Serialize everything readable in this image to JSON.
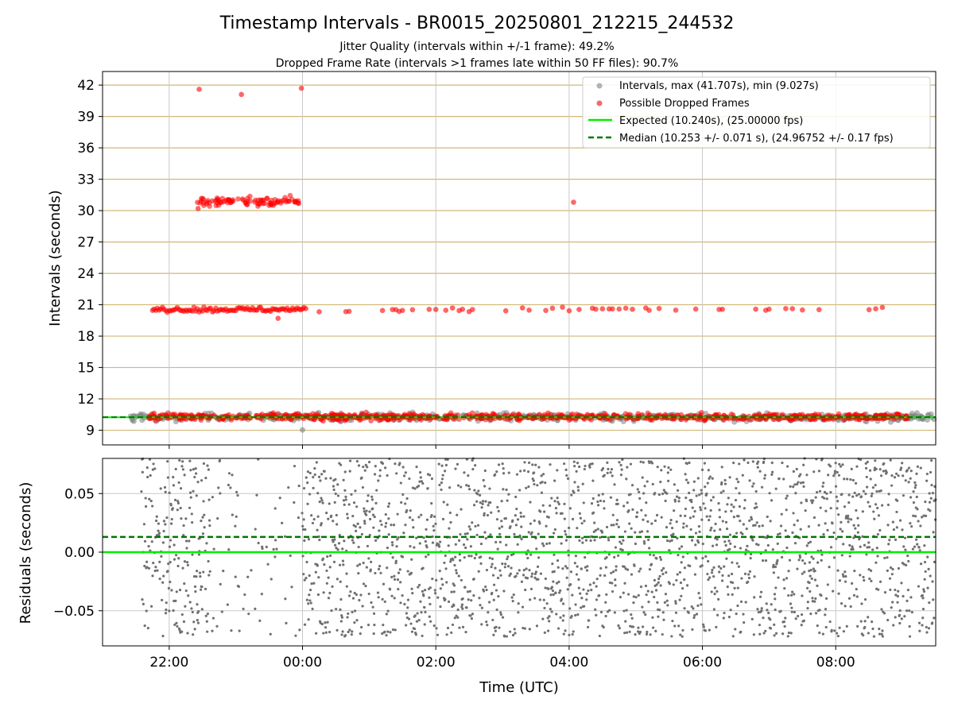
{
  "title": "Timestamp Intervals - BR0015_20250801_212215_244532",
  "subtitle_1": "Jitter Quality (intervals within +/-1 frame): 49.2%",
  "subtitle_2": "Dropped Frame Rate (intervals >1 frames late within 50 FF files): 90.7%",
  "colors": {
    "intervals": "#808080",
    "dropped": "#ff0000",
    "expected": "#00ee00",
    "median": "#007700",
    "hgrid": "#d2b877",
    "grid": "#c8c8c8"
  },
  "chart_data": [
    {
      "type": "scatter",
      "panel": "top",
      "ylabel": "Intervals (seconds)",
      "xlabel": "",
      "xlim": [
        "21:00",
        "09:30"
      ],
      "ylim": [
        7.6,
        43.3
      ],
      "y_ticks": [
        "9",
        "12",
        "15",
        "18",
        "21",
        "24",
        "27",
        "30",
        "33",
        "36",
        "39",
        "42"
      ],
      "x_ticks": [
        "22:00",
        "00:00",
        "02:00",
        "04:00",
        "06:00",
        "08:00"
      ],
      "legend_position": "upper-right",
      "legend": [
        {
          "label": "Intervals, max (41.707s), min (9.027s)",
          "kind": "marker",
          "color": "#808080"
        },
        {
          "label": "Possible Dropped Frames",
          "kind": "marker",
          "color": "#ff0000"
        },
        {
          "label": "Expected (10.240s), (25.00000 fps)",
          "kind": "line",
          "color": "#00ee00"
        },
        {
          "label": "Median (10.253 +/- 0.071 s), (24.96752 +/- 0.17 fps)",
          "kind": "dashed",
          "color": "#007700"
        }
      ],
      "expected_line": 10.24,
      "median_line": 10.253,
      "series": [
        {
          "name": "Intervals, max (41.707s), min (9.027s)",
          "color": "#808080",
          "clusters": [
            {
              "x_start": "21:25",
              "x_end": "09:30",
              "y": 10.24,
              "spread": 0.18
            },
            {
              "x_start": "00:00",
              "x_end": "00:00",
              "y": 9.03,
              "spread": 0
            }
          ]
        },
        {
          "name": "Possible Dropped Frames",
          "color": "#ff0000",
          "clusters": [
            {
              "x_start": "21:40",
              "x_end": "09:05",
              "y": 10.28,
              "spread": 0.15
            },
            {
              "x_start": "21:45",
              "x_end": "09:00",
              "y": 20.55,
              "spread": 0.12
            },
            {
              "x_start": "22:25",
              "x_end": "23:58",
              "y": 30.85,
              "spread": 0.2
            }
          ],
          "points": [
            {
              "x": "22:27",
              "y": 41.6
            },
            {
              "x": "23:05",
              "y": 41.1
            },
            {
              "x": "23:59",
              "y": 41.7
            },
            {
              "x": "04:04",
              "y": 30.8
            },
            {
              "x": "23:38",
              "y": 19.7
            },
            {
              "x": "22:26",
              "y": 30.2
            },
            {
              "x": "23:30",
              "y": 30.5
            }
          ]
        }
      ]
    },
    {
      "type": "scatter",
      "panel": "bottom",
      "ylabel": "Residuals (seconds)",
      "xlabel": "Time (UTC)",
      "xlim": [
        "21:00",
        "09:30"
      ],
      "ylim": [
        -0.08,
        0.08
      ],
      "y_ticks": [
        "0.05",
        "0.00",
        "−0.05"
      ],
      "x_ticks": [
        "22:00",
        "00:00",
        "02:00",
        "04:00",
        "06:00",
        "08:00"
      ],
      "expected_line": 0.0,
      "median_line": 0.013,
      "series": [
        {
          "color": "#707070",
          "x_start": "21:35",
          "x_end": "09:30",
          "y_range": [
            -0.08,
            0.08
          ]
        }
      ]
    }
  ]
}
